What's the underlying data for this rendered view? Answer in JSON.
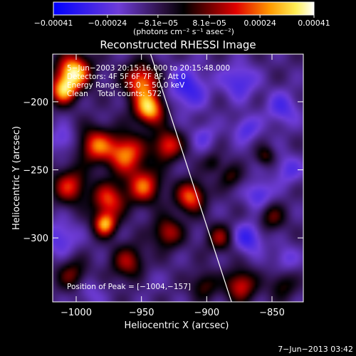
{
  "chart_data": {
    "type": "heatmap",
    "title": "Reconstructed RHESSI Image",
    "xlabel": "Heliocentric X (arcsec)",
    "ylabel": "Heliocentric Y (arcsec)",
    "xlim": [
      -1018,
      -826
    ],
    "ylim": [
      -347,
      -165
    ],
    "x_ticks": [
      {
        "value": -1000,
        "label": "−1000"
      },
      {
        "value": -950,
        "label": "−950"
      },
      {
        "value": -900,
        "label": "−900"
      },
      {
        "value": -850,
        "label": "−850"
      }
    ],
    "y_ticks": [
      {
        "value": -200,
        "label": "−200"
      },
      {
        "value": -250,
        "label": "−250"
      },
      {
        "value": -300,
        "label": "−300"
      }
    ],
    "colorbar": {
      "range": [
        -0.00041,
        0.00041
      ],
      "ticks": [
        {
          "value": -0.00041,
          "label": "−0.00041"
        },
        {
          "value": -0.00024,
          "label": "−0.00024"
        },
        {
          "value": -8.1e-05,
          "label": "−8.1e−05"
        },
        {
          "value": 8.1e-05,
          "label": "8.1e−05"
        },
        {
          "value": 0.00024,
          "label": "0.00024"
        },
        {
          "value": 0.00041,
          "label": "0.00041"
        }
      ],
      "unit_label": "(photons cm⁻² s⁻¹ asec⁻²)"
    },
    "annotations": [
      "5−Jun−2003 20:15:16.000 to 20:15:48.000",
      "Detectors: 4F 5F 6F 7F 8F, Att 0",
      "Energy Range: 25.0 − 50.0 keV",
      "Clean    Total counts: 572"
    ],
    "peak_label": "Position of Peak = [−1004,−157]",
    "peak": {
      "x": -1004,
      "y": -157
    },
    "limb_line": [
      {
        "x": -943,
        "y": -165
      },
      {
        "x": -881,
        "y": -347
      }
    ],
    "blobs": [
      {
        "x": -1002,
        "y": -178,
        "value": 0.00041,
        "sigma": 9
      },
      {
        "x": -1010,
        "y": -192,
        "value": 0.0003,
        "sigma": 7
      },
      {
        "x": -950,
        "y": -185,
        "value": 0.0003,
        "sigma": 9
      },
      {
        "x": -944,
        "y": -205,
        "value": 0.00038,
        "sigma": 8
      },
      {
        "x": -962,
        "y": -238,
        "value": 0.0003,
        "sigma": 10
      },
      {
        "x": -930,
        "y": -232,
        "value": 0.00024,
        "sigma": 8
      },
      {
        "x": -985,
        "y": -232,
        "value": 0.00026,
        "sigma": 9
      },
      {
        "x": -1005,
        "y": -262,
        "value": 0.00022,
        "sigma": 9
      },
      {
        "x": -975,
        "y": -272,
        "value": 0.00024,
        "sigma": 9
      },
      {
        "x": -978,
        "y": -290,
        "value": 0.00032,
        "sigma": 6
      },
      {
        "x": -948,
        "y": -262,
        "value": 0.00026,
        "sigma": 9
      },
      {
        "x": -912,
        "y": -270,
        "value": 0.00028,
        "sigma": 8
      },
      {
        "x": -930,
        "y": -296,
        "value": 0.00018,
        "sigma": 8
      },
      {
        "x": -960,
        "y": -318,
        "value": 0.00016,
        "sigma": 9
      },
      {
        "x": -1003,
        "y": -327,
        "value": 0.00012,
        "sigma": 8
      },
      {
        "x": -890,
        "y": -300,
        "value": 0.00014,
        "sigma": 7
      },
      {
        "x": -874,
        "y": -335,
        "value": 0.00022,
        "sigma": 8
      },
      {
        "x": -902,
        "y": -335,
        "value": 0.0001,
        "sigma": 7
      },
      {
        "x": -850,
        "y": -285,
        "value": 0.0001,
        "sigma": 7
      },
      {
        "x": -842,
        "y": -335,
        "value": 8e-05,
        "sigma": 7
      },
      {
        "x": -882,
        "y": -255,
        "value": 8e-05,
        "sigma": 6
      },
      {
        "x": -1010,
        "y": -228,
        "value": -0.0002,
        "sigma": 7
      },
      {
        "x": -1012,
        "y": -300,
        "value": -0.00022,
        "sigma": 9
      },
      {
        "x": -990,
        "y": -340,
        "value": -0.00016,
        "sigma": 8
      },
      {
        "x": -915,
        "y": -190,
        "value": -0.00026,
        "sigma": 11
      },
      {
        "x": -875,
        "y": -185,
        "value": -0.00024,
        "sigma": 9
      },
      {
        "x": -842,
        "y": -205,
        "value": -0.00022,
        "sigma": 9
      },
      {
        "x": -870,
        "y": -220,
        "value": -0.00022,
        "sigma": 7
      },
      {
        "x": -902,
        "y": -225,
        "value": -0.00018,
        "sigma": 7
      },
      {
        "x": -838,
        "y": -250,
        "value": -0.0002,
        "sigma": 8
      },
      {
        "x": -860,
        "y": -268,
        "value": -0.00024,
        "sigma": 7
      },
      {
        "x": -868,
        "y": -300,
        "value": -0.00026,
        "sigma": 8
      },
      {
        "x": -840,
        "y": -315,
        "value": -0.00018,
        "sigma": 7
      },
      {
        "x": -900,
        "y": -275,
        "value": -0.0001,
        "sigma": 6
      },
      {
        "x": -945,
        "y": -330,
        "value": -0.00012,
        "sigma": 7
      },
      {
        "x": -855,
        "y": -240,
        "value": 9e-05,
        "sigma": 5
      },
      {
        "x": -895,
        "y": -245,
        "value": 6e-05,
        "sigma": 5
      }
    ]
  },
  "footer": {
    "timestamp": "7−Jun−2013 03:42"
  }
}
